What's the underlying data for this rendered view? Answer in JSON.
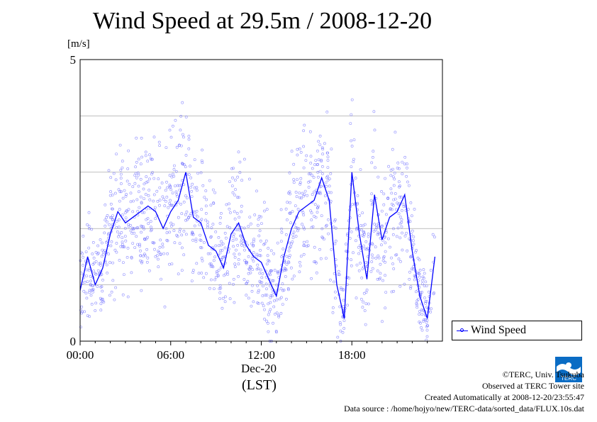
{
  "title": "Wind Speed at 29.5m / 2008-12-20",
  "unit_label": "[m/s]",
  "legend_label": "Wind Speed",
  "x_date_label": "Dec-20",
  "x_tz_label": "(LST)",
  "credits": {
    "line1": "©TERC, Univ. Tsukuba",
    "line2": "Observed at TERC Tower site",
    "line3": "Created Automatically at 2008-12-20/23:55:47",
    "line4": "Data source : /home/hojyo/new/TERC-data/sorted_data/FLUX.10s.dat"
  },
  "logo_text": "TERC",
  "colors": {
    "series": "#0000ff",
    "scatter": "#7070ff",
    "grid": "#999999"
  },
  "chart_data": {
    "type": "line",
    "title": "Wind Speed at 29.5m / 2008-12-20",
    "ylabel": "[m/s]",
    "xlabel": "(LST)",
    "ylim": [
      0,
      5
    ],
    "yticks": [
      0,
      5
    ],
    "xlim": [
      "00:00",
      "24:00"
    ],
    "xticks": [
      "00:00",
      "06:00",
      "12:00",
      "18:00"
    ],
    "grid": true,
    "legend_position": "right-bottom",
    "series": [
      {
        "name": "Wind Speed",
        "x": [
          "00:00",
          "00:30",
          "01:00",
          "01:30",
          "02:00",
          "02:30",
          "03:00",
          "03:30",
          "04:00",
          "04:30",
          "05:00",
          "05:30",
          "06:00",
          "06:30",
          "07:00",
          "07:30",
          "08:00",
          "08:30",
          "09:00",
          "09:30",
          "10:00",
          "10:30",
          "11:00",
          "11:30",
          "12:00",
          "12:30",
          "13:00",
          "13:30",
          "14:00",
          "14:30",
          "15:00",
          "15:30",
          "16:00",
          "16:30",
          "17:00",
          "17:30",
          "18:00",
          "18:30",
          "19:00",
          "19:30",
          "20:00",
          "20:30",
          "21:00",
          "21:30",
          "22:00",
          "22:30",
          "23:00",
          "23:30"
        ],
        "values": [
          0.9,
          1.5,
          1.0,
          1.3,
          1.9,
          2.3,
          2.1,
          2.2,
          2.3,
          2.4,
          2.3,
          2.0,
          2.3,
          2.5,
          3.0,
          2.2,
          2.1,
          1.7,
          1.6,
          1.3,
          1.9,
          2.1,
          1.7,
          1.5,
          1.4,
          1.1,
          0.8,
          1.5,
          2.0,
          2.3,
          2.4,
          2.5,
          2.9,
          2.5,
          1.0,
          0.4,
          3.0,
          1.9,
          1.1,
          2.6,
          1.8,
          2.2,
          2.3,
          2.6,
          1.6,
          0.8,
          0.4,
          1.5
        ]
      }
    ]
  }
}
